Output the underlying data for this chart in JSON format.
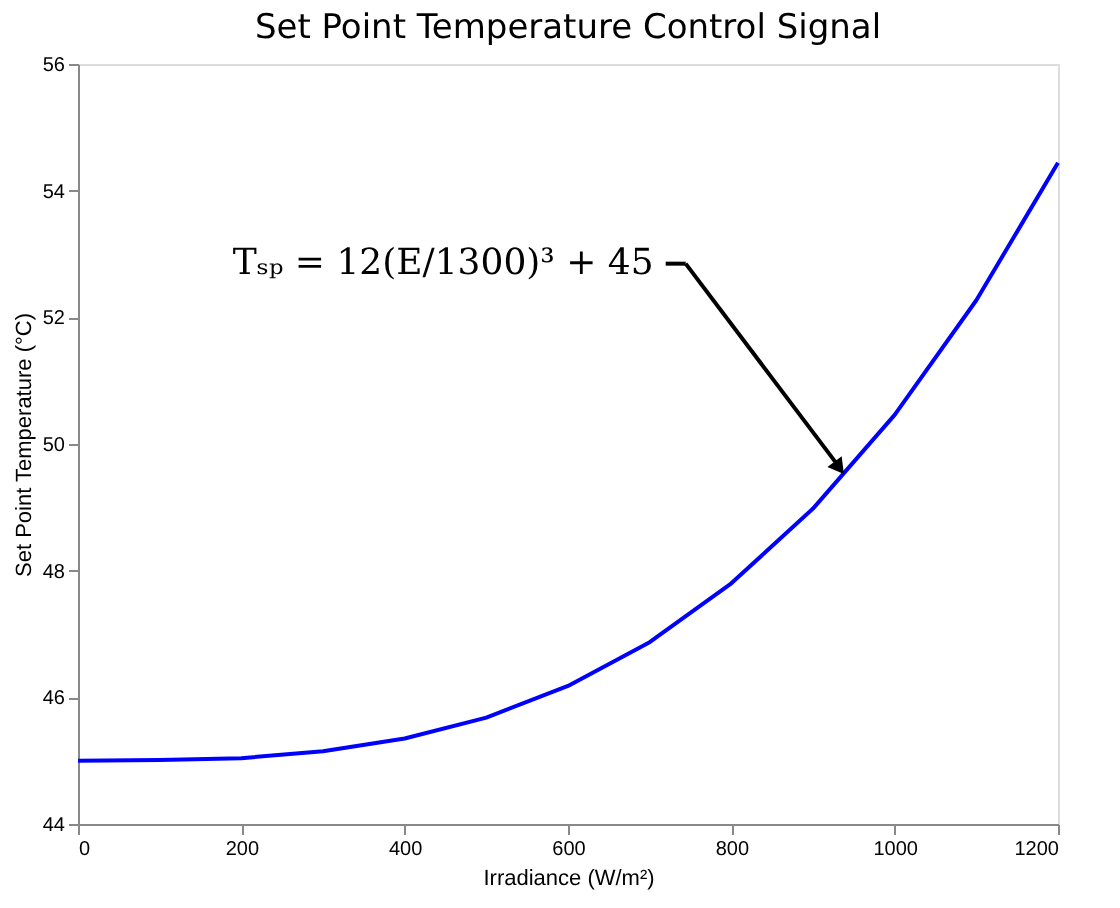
{
  "chart_data": {
    "type": "line",
    "title": "Set Point Temperature Control Signal",
    "xlabel": "Irradiance (W/m²)",
    "ylabel": "Set Point Temperature (°C)",
    "x": [
      0,
      100,
      200,
      300,
      400,
      500,
      600,
      700,
      800,
      900,
      1000,
      1100,
      1200
    ],
    "series": [
      {
        "color": "#0000ff",
        "values": [
          45.0,
          45.01,
          45.04,
          45.15,
          45.35,
          45.68,
          46.18,
          46.87,
          47.8,
          48.98,
          50.46,
          52.27,
          54.44
        ]
      }
    ],
    "xlim": [
      0,
      1200
    ],
    "ylim": [
      44,
      56
    ],
    "xticks": [
      0,
      200,
      400,
      600,
      800,
      1000,
      1200
    ],
    "yticks": [
      44,
      46,
      48,
      50,
      52,
      54,
      56
    ],
    "annotations": [
      {
        "text": "Tₛₚ = 12(E/1300)³ + 45",
        "x": 940,
        "y": 49.5
      }
    ]
  }
}
